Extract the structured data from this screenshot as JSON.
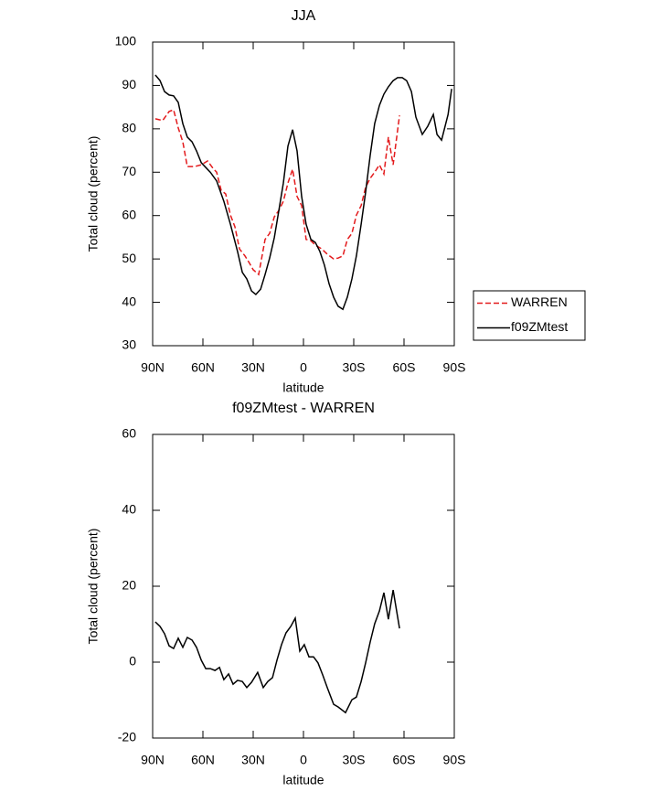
{
  "chart_data": [
    {
      "type": "line",
      "title": "JJA",
      "xlabel": "latitude",
      "ylabel": "Total cloud (percent)",
      "xlim": [
        90,
        -90
      ],
      "xticks": [
        {
          "value": 90,
          "label": "90N"
        },
        {
          "value": 60,
          "label": "60N"
        },
        {
          "value": 30,
          "label": "30N"
        },
        0,
        {
          "value": -30,
          "label": "30S"
        },
        {
          "value": -60,
          "label": "60S"
        },
        {
          "value": -90,
          "label": "90S"
        }
      ],
      "ylim": [
        30,
        100
      ],
      "yticks": [
        30,
        40,
        50,
        60,
        70,
        80,
        90,
        100
      ],
      "legend": "right",
      "series": [
        {
          "name": "WARREN",
          "color": "#e31a1c",
          "dashed": true,
          "x": [
            88.4,
            84,
            80.2,
            77.5,
            74.7,
            72,
            69.3,
            64.9,
            61,
            57.2,
            54,
            51.8,
            49.1,
            46.4,
            43.6,
            40.9,
            38.2,
            34.9,
            32.2,
            30,
            26.7,
            22.9,
            20.2,
            17.4,
            14.7,
            12,
            9.3,
            6.5,
            3.8,
            1.1,
            -1.6,
            -4.4,
            -7.1,
            -10.9,
            -14.2,
            -18,
            -20.7,
            -23.5,
            -26.2,
            -28.9,
            -31.6,
            -34.4,
            -37.1,
            -39.8,
            -42.5,
            -45.3,
            -48,
            -50.7,
            -53.5,
            -57.3
          ],
          "values": [
            82.3,
            81.9,
            84,
            84.4,
            80.2,
            77,
            71.3,
            71.3,
            71.7,
            72.6,
            70.9,
            70,
            65.8,
            65,
            60.1,
            57.4,
            52.3,
            50.7,
            49,
            47.5,
            46.4,
            54.5,
            55.9,
            59.7,
            61.2,
            63.3,
            67.5,
            70.7,
            64.4,
            62.3,
            54.5,
            54.2,
            53.2,
            52.3,
            51.1,
            50,
            50.2,
            50.7,
            54.5,
            55.9,
            60.1,
            62.3,
            66.5,
            68.6,
            70,
            71.7,
            69.6,
            78.1,
            71.7,
            83.1
          ]
        },
        {
          "name": "f09ZMtest",
          "color": "#000000",
          "dashed": false,
          "x": [
            88.4,
            85.6,
            82.9,
            80.2,
            77.5,
            74.7,
            72,
            69.3,
            66.5,
            63.8,
            61,
            55.6,
            51.8,
            47.5,
            43.6,
            39.3,
            36.5,
            33.8,
            31,
            28.4,
            25.6,
            22.9,
            20.2,
            17.4,
            14.7,
            12,
            9.3,
            6.5,
            3.8,
            1.1,
            -1.6,
            -4.4,
            -7.1,
            -9.8,
            -12.5,
            -15.3,
            -18,
            -20.7,
            -23.5,
            -26.2,
            -28.9,
            -31.6,
            -34.4,
            -37.1,
            -39.8,
            -42.5,
            -45.3,
            -48,
            -50.7,
            -53.5,
            -56.2,
            -58.9,
            -61.6,
            -64.4,
            -67.1,
            -70.9,
            -74.2,
            -77.5,
            -79.7,
            -82.4,
            -86.3,
            -88.4
          ],
          "values": [
            92.4,
            91.1,
            88.6,
            87.8,
            87.6,
            86.1,
            81.2,
            78.1,
            77,
            74.9,
            72.2,
            70,
            68,
            63.3,
            58,
            51.7,
            46.9,
            45.4,
            42.6,
            41.8,
            43,
            46.4,
            50.2,
            54.9,
            61.2,
            67.5,
            76,
            79.8,
            74.9,
            64.4,
            58,
            54.5,
            53.8,
            51.7,
            48.6,
            44.3,
            41.2,
            39.1,
            38.4,
            41.2,
            45.4,
            50.7,
            58,
            65.4,
            73.9,
            81.2,
            85.4,
            88,
            89.7,
            91.1,
            91.8,
            91.8,
            91.1,
            88.6,
            82.7,
            78.7,
            80.6,
            83.3,
            78.7,
            77.4,
            83.3,
            89.2
          ]
        }
      ]
    },
    {
      "type": "line",
      "title": "f09ZMtest - WARREN",
      "xlabel": "latitude",
      "ylabel": "Total cloud (percent)",
      "xlim": [
        90,
        -90
      ],
      "xticks": [
        {
          "value": 90,
          "label": "90N"
        },
        {
          "value": 60,
          "label": "60N"
        },
        {
          "value": 30,
          "label": "30N"
        },
        0,
        {
          "value": -30,
          "label": "30S"
        },
        {
          "value": -60,
          "label": "60S"
        },
        {
          "value": -90,
          "label": "90S"
        }
      ],
      "ylim": [
        -20,
        60
      ],
      "yticks": [
        -20,
        0,
        20,
        40,
        60
      ],
      "series": [
        {
          "color": "#000000",
          "dashed": false,
          "x": [
            88.4,
            85.6,
            82.9,
            80.2,
            77.5,
            74.7,
            72,
            69.3,
            66.5,
            63.8,
            61,
            58.3,
            55.6,
            52.8,
            50.1,
            47.5,
            44.7,
            42,
            39.3,
            36.5,
            33.8,
            31,
            27.3,
            24,
            21.3,
            18.5,
            15.8,
            13.1,
            10.4,
            7.6,
            4.9,
            2.2,
            -0.5,
            -3.3,
            -6,
            -8.7,
            -11.5,
            -14.2,
            -18,
            -20.7,
            -25.1,
            -28.9,
            -31.6,
            -34.4,
            -37.1,
            -39.8,
            -42.5,
            -45.3,
            -48,
            -50.7,
            -53.5,
            -57.3
          ],
          "values": [
            10.6,
            9.4,
            7.5,
            4.3,
            3.6,
            6.3,
            3.9,
            6.5,
            5.8,
            3.9,
            0.5,
            -1.7,
            -1.7,
            -2.2,
            -1.4,
            -4.6,
            -3.1,
            -5.8,
            -4.8,
            -5.1,
            -6.7,
            -5.3,
            -2.7,
            -6.7,
            -5.1,
            -4.1,
            0.5,
            4.6,
            7.7,
            9.4,
            11.6,
            2.9,
            4.6,
            1.4,
            1.4,
            -0.2,
            -3.4,
            -6.7,
            -11.1,
            -11.8,
            -13.3,
            -9.9,
            -9.2,
            -5.1,
            -0.2,
            5.3,
            10.1,
            13.5,
            18.3,
            11.3,
            19,
            8.9
          ]
        }
      ]
    }
  ]
}
